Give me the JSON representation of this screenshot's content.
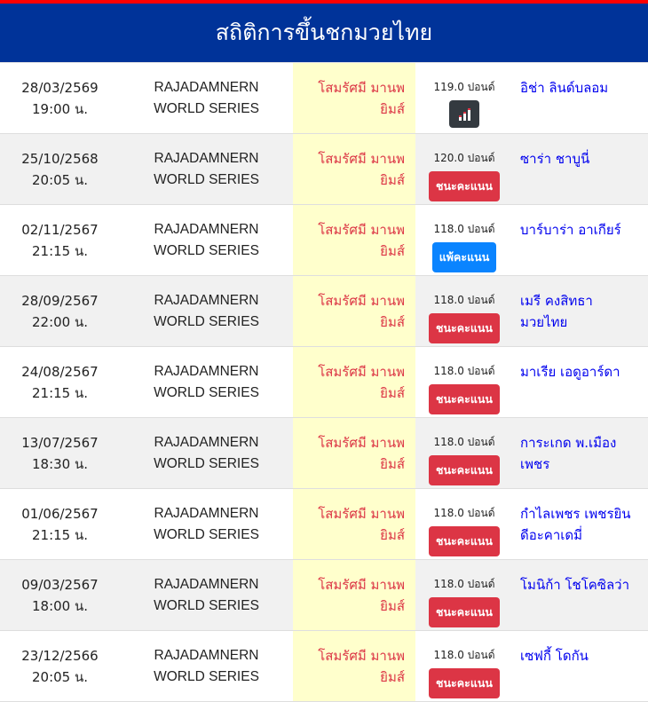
{
  "header": {
    "title": "สถิติการขึ้นชกมวยไทย"
  },
  "colors": {
    "header_bg": "#003399",
    "top_stripe": "#ff0000",
    "win": "#dc3545",
    "lose": "#0a84ff",
    "fighter_bg": "#ffffcc",
    "opponent": "#0000ee"
  },
  "fights": [
    {
      "date": "28/03/2569",
      "time": "19:00 น.",
      "venue1": "RAJADAMNERN",
      "venue2": "WORLD SERIES",
      "fighter1": "โสมรัศมี มานพ",
      "fighter2": "ยิมส์",
      "weight": "119.0 ปอนด์",
      "result": "",
      "result_type": "stats",
      "opponent": "อิช่า ลินด์บลอม"
    },
    {
      "date": "25/10/2568",
      "time": "20:05 น.",
      "venue1": "RAJADAMNERN",
      "venue2": "WORLD SERIES",
      "fighter1": "โสมรัศมี มานพ",
      "fighter2": "ยิมส์",
      "weight": "120.0 ปอนด์",
      "result": "ชนะคะแนน",
      "result_type": "win",
      "opponent": "ซาร่า ชาบูนี่"
    },
    {
      "date": "02/11/2567",
      "time": "21:15 น.",
      "venue1": "RAJADAMNERN",
      "venue2": "WORLD SERIES",
      "fighter1": "โสมรัศมี มานพ",
      "fighter2": "ยิมส์",
      "weight": "118.0 ปอนด์",
      "result": "แพ้คะแนน",
      "result_type": "lose",
      "opponent": "บาร์บาร่า อาเกียร์"
    },
    {
      "date": "28/09/2567",
      "time": "22:00 น.",
      "venue1": "RAJADAMNERN",
      "venue2": "WORLD SERIES",
      "fighter1": "โสมรัศมี มานพ",
      "fighter2": "ยิมส์",
      "weight": "118.0 ปอนด์",
      "result": "ชนะคะแนน",
      "result_type": "win",
      "opponent": "เมรี คงสิทธา มวยไทย"
    },
    {
      "date": "24/08/2567",
      "time": "21:15 น.",
      "venue1": "RAJADAMNERN",
      "venue2": "WORLD SERIES",
      "fighter1": "โสมรัศมี มานพ",
      "fighter2": "ยิมส์",
      "weight": "118.0 ปอนด์",
      "result": "ชนะคะแนน",
      "result_type": "win",
      "opponent": "มาเรีย เอดูอาร์ดา"
    },
    {
      "date": "13/07/2567",
      "time": "18:30 น.",
      "venue1": "RAJADAMNERN",
      "venue2": "WORLD SERIES",
      "fighter1": "โสมรัศมี มานพ",
      "fighter2": "ยิมส์",
      "weight": "118.0 ปอนด์",
      "result": "ชนะคะแนน",
      "result_type": "win",
      "opponent": "การะเกด พ.เมือง เพชร"
    },
    {
      "date": "01/06/2567",
      "time": "21:15 น.",
      "venue1": "RAJADAMNERN",
      "venue2": "WORLD SERIES",
      "fighter1": "โสมรัศมี มานพ",
      "fighter2": "ยิมส์",
      "weight": "118.0 ปอนด์",
      "result": "ชนะคะแนน",
      "result_type": "win",
      "opponent": "กำไลเพชร เพชรยิน ดีอะคาเดมี่"
    },
    {
      "date": "09/03/2567",
      "time": "18:00 น.",
      "venue1": "RAJADAMNERN",
      "venue2": "WORLD SERIES",
      "fighter1": "โสมรัศมี มานพ",
      "fighter2": "ยิมส์",
      "weight": "118.0 ปอนด์",
      "result": "ชนะคะแนน",
      "result_type": "win",
      "opponent": "โมนิก้า โชโคซิลว่า"
    },
    {
      "date": "23/12/2566",
      "time": "20:05 น.",
      "venue1": "RAJADAMNERN",
      "venue2": "WORLD SERIES",
      "fighter1": "โสมรัศมี มานพ",
      "fighter2": "ยิมส์",
      "weight": "118.0 ปอนด์",
      "result": "ชนะคะแนน",
      "result_type": "win",
      "opponent": "เซฟกี้ โดกัน"
    }
  ]
}
